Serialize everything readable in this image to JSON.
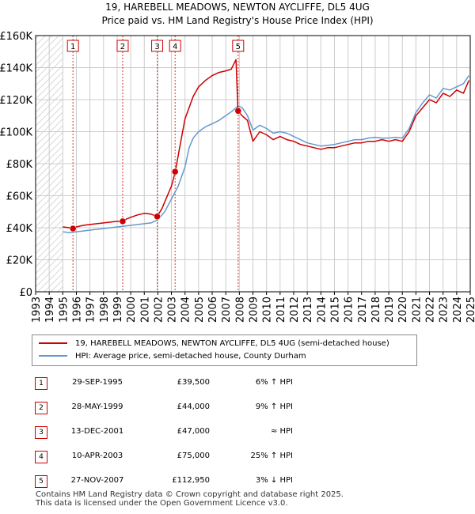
{
  "title": "19, HAREBELL MEADOWS, NEWTON AYCLIFFE, DL5 4UG",
  "subtitle": "Price paid vs. HM Land Registry's House Price Index (HPI)",
  "colors": {
    "property": "#cc0000",
    "hpi": "#6699cc",
    "hatch": "#cccccc",
    "grid": "#cccccc",
    "marker_box": "#cc0000"
  },
  "chart_data": {
    "type": "line",
    "title": "19, HAREBELL MEADOWS, NEWTON AYCLIFFE, DL5 4UG",
    "subtitle": "Price paid vs. HM Land Registry's House Price Index (HPI)",
    "xlim": [
      1993,
      2025
    ],
    "ylim": [
      0,
      160000
    ],
    "x_ticks": [
      "1993",
      "1994",
      "1995",
      "1996",
      "1997",
      "1998",
      "1999",
      "2000",
      "2001",
      "2002",
      "2003",
      "2004",
      "2005",
      "2006",
      "2007",
      "2008",
      "2009",
      "2010",
      "2011",
      "2012",
      "2013",
      "2014",
      "2015",
      "2016",
      "2017",
      "2018",
      "2019",
      "2020",
      "2021",
      "2022",
      "2023",
      "2024",
      "2025"
    ],
    "y_ticks": [
      {
        "value": 0,
        "label": "£0"
      },
      {
        "value": 20000,
        "label": "£20K"
      },
      {
        "value": 40000,
        "label": "£40K"
      },
      {
        "value": 60000,
        "label": "£60K"
      },
      {
        "value": 80000,
        "label": "£80K"
      },
      {
        "value": 100000,
        "label": "£100K"
      },
      {
        "value": 120000,
        "label": "£120K"
      },
      {
        "value": 140000,
        "label": "£140K"
      },
      {
        "value": 160000,
        "label": "£160K"
      }
    ],
    "grid": true,
    "hatched_before": 1995.0,
    "series": [
      {
        "name": "19, HAREBELL MEADOWS, NEWTON AYCLIFFE, DL5 4UG (semi-detached house)",
        "color": "#cc0000",
        "x": [
          1995.0,
          1995.5,
          1995.75,
          1996.0,
          1996.5,
          1997.0,
          1997.5,
          1998.0,
          1998.5,
          1999.0,
          1999.42,
          1999.7,
          2000.0,
          2000.5,
          2001.0,
          2001.5,
          2001.95,
          2002.3,
          2002.6,
          2003.0,
          2003.28,
          2003.6,
          2004.0,
          2004.3,
          2004.6,
          2005.0,
          2005.5,
          2006.0,
          2006.5,
          2007.0,
          2007.4,
          2007.75,
          2007.9,
          2008.2,
          2008.6,
          2009.0,
          2009.5,
          2010.0,
          2010.5,
          2011.0,
          2011.5,
          2012.0,
          2012.5,
          2013.0,
          2013.5,
          2014.0,
          2014.5,
          2015.0,
          2015.5,
          2016.0,
          2016.5,
          2017.0,
          2017.5,
          2018.0,
          2018.5,
          2019.0,
          2019.5,
          2020.0,
          2020.5,
          2021.0,
          2021.5,
          2022.0,
          2022.5,
          2023.0,
          2023.5,
          2024.0,
          2024.5,
          2024.9
        ],
        "y": [
          40500,
          40000,
          39500,
          40500,
          41500,
          42000,
          42500,
          43000,
          43500,
          44000,
          44000,
          45500,
          46500,
          48000,
          49000,
          48500,
          47000,
          52000,
          58000,
          66000,
          75000,
          90000,
          108000,
          115000,
          122000,
          128000,
          132000,
          135000,
          137000,
          138000,
          139000,
          145000,
          112950,
          110000,
          107000,
          94000,
          100000,
          98000,
          95000,
          97000,
          95000,
          94000,
          92000,
          91000,
          90000,
          89000,
          90000,
          90000,
          91000,
          92000,
          93000,
          93000,
          94000,
          94000,
          95000,
          94000,
          95000,
          94000,
          100000,
          110000,
          115000,
          120000,
          118000,
          124000,
          122000,
          126000,
          124000,
          132000
        ]
      },
      {
        "name": "HPI: Average price, semi-detached house, County Durham",
        "color": "#6699cc",
        "x": [
          1995.0,
          1995.5,
          1996.0,
          1996.5,
          1997.0,
          1997.5,
          1998.0,
          1998.5,
          1999.0,
          1999.5,
          2000.0,
          2000.5,
          2001.0,
          2001.5,
          2002.0,
          2002.5,
          2003.0,
          2003.5,
          2004.0,
          2004.3,
          2004.6,
          2005.0,
          2005.5,
          2006.0,
          2006.5,
          2007.0,
          2007.5,
          2007.9,
          2008.2,
          2008.6,
          2009.0,
          2009.5,
          2010.0,
          2010.5,
          2011.0,
          2011.5,
          2012.0,
          2012.5,
          2013.0,
          2013.5,
          2014.0,
          2014.5,
          2015.0,
          2015.5,
          2016.0,
          2016.5,
          2017.0,
          2017.5,
          2018.0,
          2018.5,
          2019.0,
          2019.5,
          2020.0,
          2020.5,
          2021.0,
          2021.5,
          2022.0,
          2022.5,
          2023.0,
          2023.5,
          2024.0,
          2024.5,
          2024.9
        ],
        "y": [
          37500,
          37000,
          37500,
          38000,
          38500,
          39000,
          39500,
          40000,
          40500,
          41000,
          41500,
          42000,
          42500,
          43000,
          45000,
          50000,
          58000,
          66000,
          78000,
          90000,
          96000,
          100000,
          103000,
          105000,
          107000,
          110000,
          113000,
          116000,
          115000,
          110000,
          101000,
          104000,
          102000,
          99000,
          100000,
          99000,
          97000,
          95000,
          93000,
          92000,
          91000,
          91500,
          92000,
          93000,
          94000,
          95000,
          95000,
          96000,
          96500,
          96000,
          96000,
          96500,
          96000,
          102000,
          112000,
          118000,
          123000,
          121000,
          127000,
          126000,
          128000,
          130000,
          135000
        ]
      }
    ],
    "sale_markers": [
      {
        "label": "1",
        "x": 1995.75,
        "y": 39500
      },
      {
        "label": "2",
        "x": 1999.41,
        "y": 44000
      },
      {
        "label": "3",
        "x": 2001.95,
        "y": 47000
      },
      {
        "label": "4",
        "x": 2003.27,
        "y": 75000
      },
      {
        "label": "5",
        "x": 2007.91,
        "y": 112950
      }
    ]
  },
  "legend": {
    "property_label": "19, HAREBELL MEADOWS, NEWTON AYCLIFFE, DL5 4UG (semi-detached house)",
    "hpi_label": "HPI: Average price, semi-detached house, County Durham"
  },
  "sales": [
    {
      "num": "1",
      "date": "29-SEP-1995",
      "price": "£39,500",
      "hpi": "6% ↑ HPI"
    },
    {
      "num": "2",
      "date": "28-MAY-1999",
      "price": "£44,000",
      "hpi": "9% ↑ HPI"
    },
    {
      "num": "3",
      "date": "13-DEC-2001",
      "price": "£47,000",
      "hpi": "≈ HPI"
    },
    {
      "num": "4",
      "date": "10-APR-2003",
      "price": "£75,000",
      "hpi": "25% ↑ HPI"
    },
    {
      "num": "5",
      "date": "27-NOV-2007",
      "price": "£112,950",
      "hpi": "3% ↓ HPI"
    }
  ],
  "footer": {
    "line1": "Contains HM Land Registry data © Crown copyright and database right 2025.",
    "line2": "This data is licensed under the Open Government Licence v3.0."
  }
}
